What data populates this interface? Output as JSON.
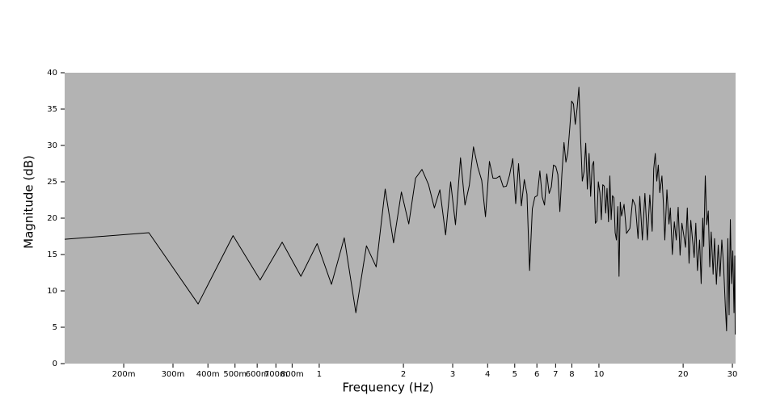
{
  "chart_data": {
    "type": "line",
    "x_label": "Frequency (Hz)",
    "y_label": "Magnitude (dB)",
    "log_x": true,
    "plot_background": "#b3b3b3",
    "xlim": [
      0.123,
      30.8
    ],
    "ylim": [
      0,
      40
    ],
    "xticks": [
      {
        "value": 0.2,
        "label": "200m"
      },
      {
        "value": 0.3,
        "label": "300m"
      },
      {
        "value": 0.4,
        "label": "400m"
      },
      {
        "value": 0.5,
        "label": "500m"
      },
      {
        "value": 0.6,
        "label": "600m"
      },
      {
        "value": 0.7,
        "label": "700m"
      },
      {
        "value": 0.8,
        "label": "800m"
      },
      1,
      2,
      3,
      4,
      5,
      6,
      7,
      8,
      10,
      20,
      30
    ],
    "yticks": [
      0,
      5,
      10,
      15,
      20,
      25,
      30,
      35,
      40
    ],
    "series": [
      {
        "color": "#000000",
        "x": [
          0.123,
          0.246,
          0.369,
          0.492,
          0.615,
          0.737,
          0.86,
          0.983,
          1.106,
          1.229,
          1.352,
          1.475,
          1.598,
          1.721,
          1.844,
          1.967,
          2.09,
          2.21,
          2.33,
          2.46,
          2.58,
          2.7,
          2.83,
          2.95,
          3.07,
          3.2,
          3.32,
          3.44,
          3.56,
          3.69,
          3.81,
          3.93,
          4.06,
          4.18,
          4.3,
          4.42,
          4.55,
          4.67,
          4.79,
          4.92,
          5.04,
          5.16,
          5.28,
          5.41,
          5.53,
          5.65,
          5.78,
          5.9,
          6.02,
          6.15,
          6.27,
          6.39,
          6.51,
          6.64,
          6.76,
          6.88,
          7.01,
          7.13,
          7.25,
          7.37,
          7.5,
          7.62,
          7.74,
          7.87,
          7.99,
          8.11,
          8.23,
          8.36,
          8.48,
          8.6,
          8.72,
          8.85,
          8.97,
          9.09,
          9.22,
          9.34,
          9.46,
          9.58,
          9.71,
          9.83,
          9.95,
          10.08,
          10.2,
          10.32,
          10.45,
          10.57,
          10.69,
          10.82,
          10.94,
          11.06,
          11.18,
          11.31,
          11.43,
          11.55,
          11.68,
          11.8,
          11.92,
          12.05,
          12.3,
          12.55,
          12.9,
          13.2,
          13.5,
          13.8,
          14.0,
          14.3,
          14.6,
          14.9,
          15.2,
          15.5,
          15.7,
          15.9,
          16.1,
          16.3,
          16.5,
          16.8,
          17.0,
          17.2,
          17.5,
          17.8,
          18.0,
          18.3,
          18.6,
          18.9,
          19.2,
          19.5,
          19.8,
          20.1,
          20.4,
          20.7,
          21.0,
          21.3,
          21.6,
          21.9,
          22.2,
          22.5,
          22.9,
          23.2,
          23.5,
          23.7,
          24.0,
          24.3,
          24.6,
          24.9,
          25.2,
          25.6,
          25.9,
          26.3,
          26.7,
          27.1,
          27.5,
          27.9,
          28.3,
          28.6,
          28.9,
          29.2,
          29.5,
          29.8,
          30.1,
          30.4,
          30.6,
          30.7
        ],
        "values": [
          17.1,
          18.0,
          8.2,
          17.6,
          11.5,
          16.7,
          12.0,
          16.5,
          10.9,
          17.3,
          7.0,
          16.2,
          13.3,
          24.0,
          16.6,
          23.6,
          19.2,
          25.5,
          26.7,
          24.6,
          21.4,
          23.9,
          17.7,
          25.0,
          19.1,
          28.3,
          21.8,
          24.5,
          29.8,
          27.0,
          25.2,
          20.2,
          27.8,
          25.5,
          25.5,
          25.8,
          24.3,
          24.4,
          25.9,
          28.2,
          22.0,
          27.5,
          21.7,
          25.3,
          23.3,
          12.8,
          21.3,
          22.9,
          23.1,
          26.5,
          22.9,
          21.8,
          26.1,
          23.4,
          24.3,
          27.3,
          27.1,
          26.0,
          20.9,
          26.0,
          30.4,
          27.7,
          29.0,
          32.5,
          36.1,
          35.7,
          32.9,
          35.2,
          38.0,
          31.0,
          25.1,
          26.4,
          30.3,
          24.0,
          28.9,
          23.0,
          27.2,
          27.8,
          19.3,
          19.6,
          25.0,
          23.5,
          19.8,
          24.6,
          24.4,
          20.7,
          24.1,
          19.5,
          25.8,
          19.8,
          23.1,
          22.8,
          18.0,
          17.0,
          21.6,
          12.0,
          22.2,
          20.3,
          21.9,
          17.9,
          18.6,
          22.6,
          21.7,
          17.2,
          23.0,
          17.0,
          23.4,
          17.0,
          23.2,
          18.2,
          26.8,
          28.9,
          25.1,
          27.3,
          23.5,
          25.8,
          22.0,
          17.0,
          23.9,
          19.2,
          21.4,
          15.0,
          19.5,
          17.0,
          21.5,
          14.9,
          19.3,
          17.7,
          16.0,
          21.4,
          13.8,
          19.7,
          17.1,
          14.6,
          19.3,
          12.8,
          17.0,
          11.0,
          20.0,
          16.1,
          25.8,
          19.1,
          21.0,
          13.3,
          18.1,
          12.3,
          17.2,
          10.9,
          16.3,
          12.0,
          17.0,
          13.5,
          7.9,
          4.5,
          17.2,
          6.7,
          19.8,
          11.0,
          15.5,
          7.0,
          14.8,
          4.0
        ]
      }
    ]
  }
}
